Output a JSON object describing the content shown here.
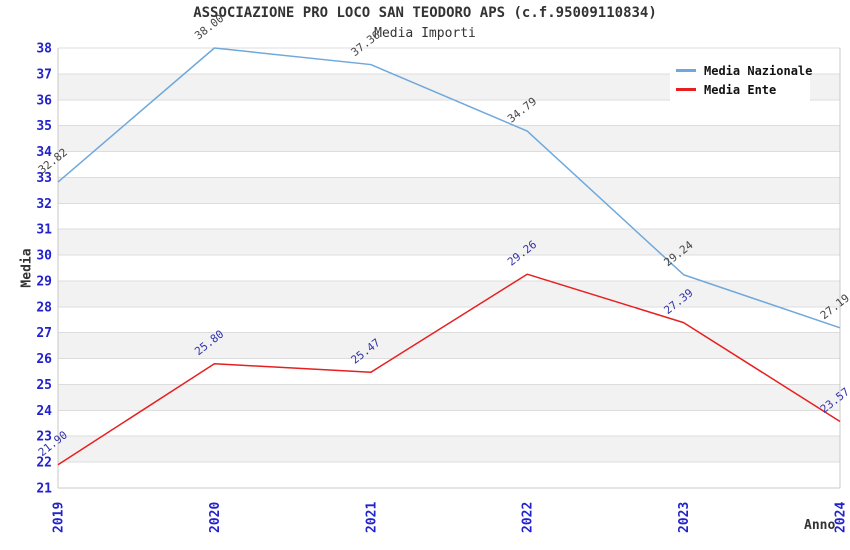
{
  "chart_data": {
    "type": "line",
    "title": "ASSOCIAZIONE PRO LOCO SAN TEODORO APS (c.f.95009110834)",
    "subtitle": "Media Importi",
    "xlabel": "Anno",
    "ylabel": "Media",
    "categories": [
      "2019",
      "2020",
      "2021",
      "2022",
      "2023",
      "2024"
    ],
    "ylim": [
      21,
      38
    ],
    "y_tick_step": 1,
    "grid": "horizontal",
    "background_bands": "alternating-gray-white",
    "legend_position": "top-right-inside",
    "series": [
      {
        "name": "Media Nazionale",
        "color": "#6FA8DC",
        "label_color": "#444444",
        "values": [
          32.82,
          38.0,
          37.36,
          34.79,
          29.24,
          27.19
        ],
        "point_labels": [
          "32.82",
          "38.00",
          "37.36",
          "34.79",
          "29.24",
          "27.19"
        ]
      },
      {
        "name": "Media Ente",
        "color": "#E62020",
        "label_color": "#3333AA",
        "values": [
          21.9,
          25.8,
          25.47,
          29.26,
          27.39,
          23.57
        ],
        "point_labels": [
          "21.90",
          "25.80",
          "25.47",
          "29.26",
          "27.39",
          "23.57"
        ]
      }
    ],
    "colors": {
      "tick_label": "#2222CC",
      "grid_line": "#DDDDDD",
      "band_gray": "#F2F2F2",
      "title_text": "#333333",
      "legend_text": "#111111",
      "plot_background": "#FFFFFF"
    }
  }
}
